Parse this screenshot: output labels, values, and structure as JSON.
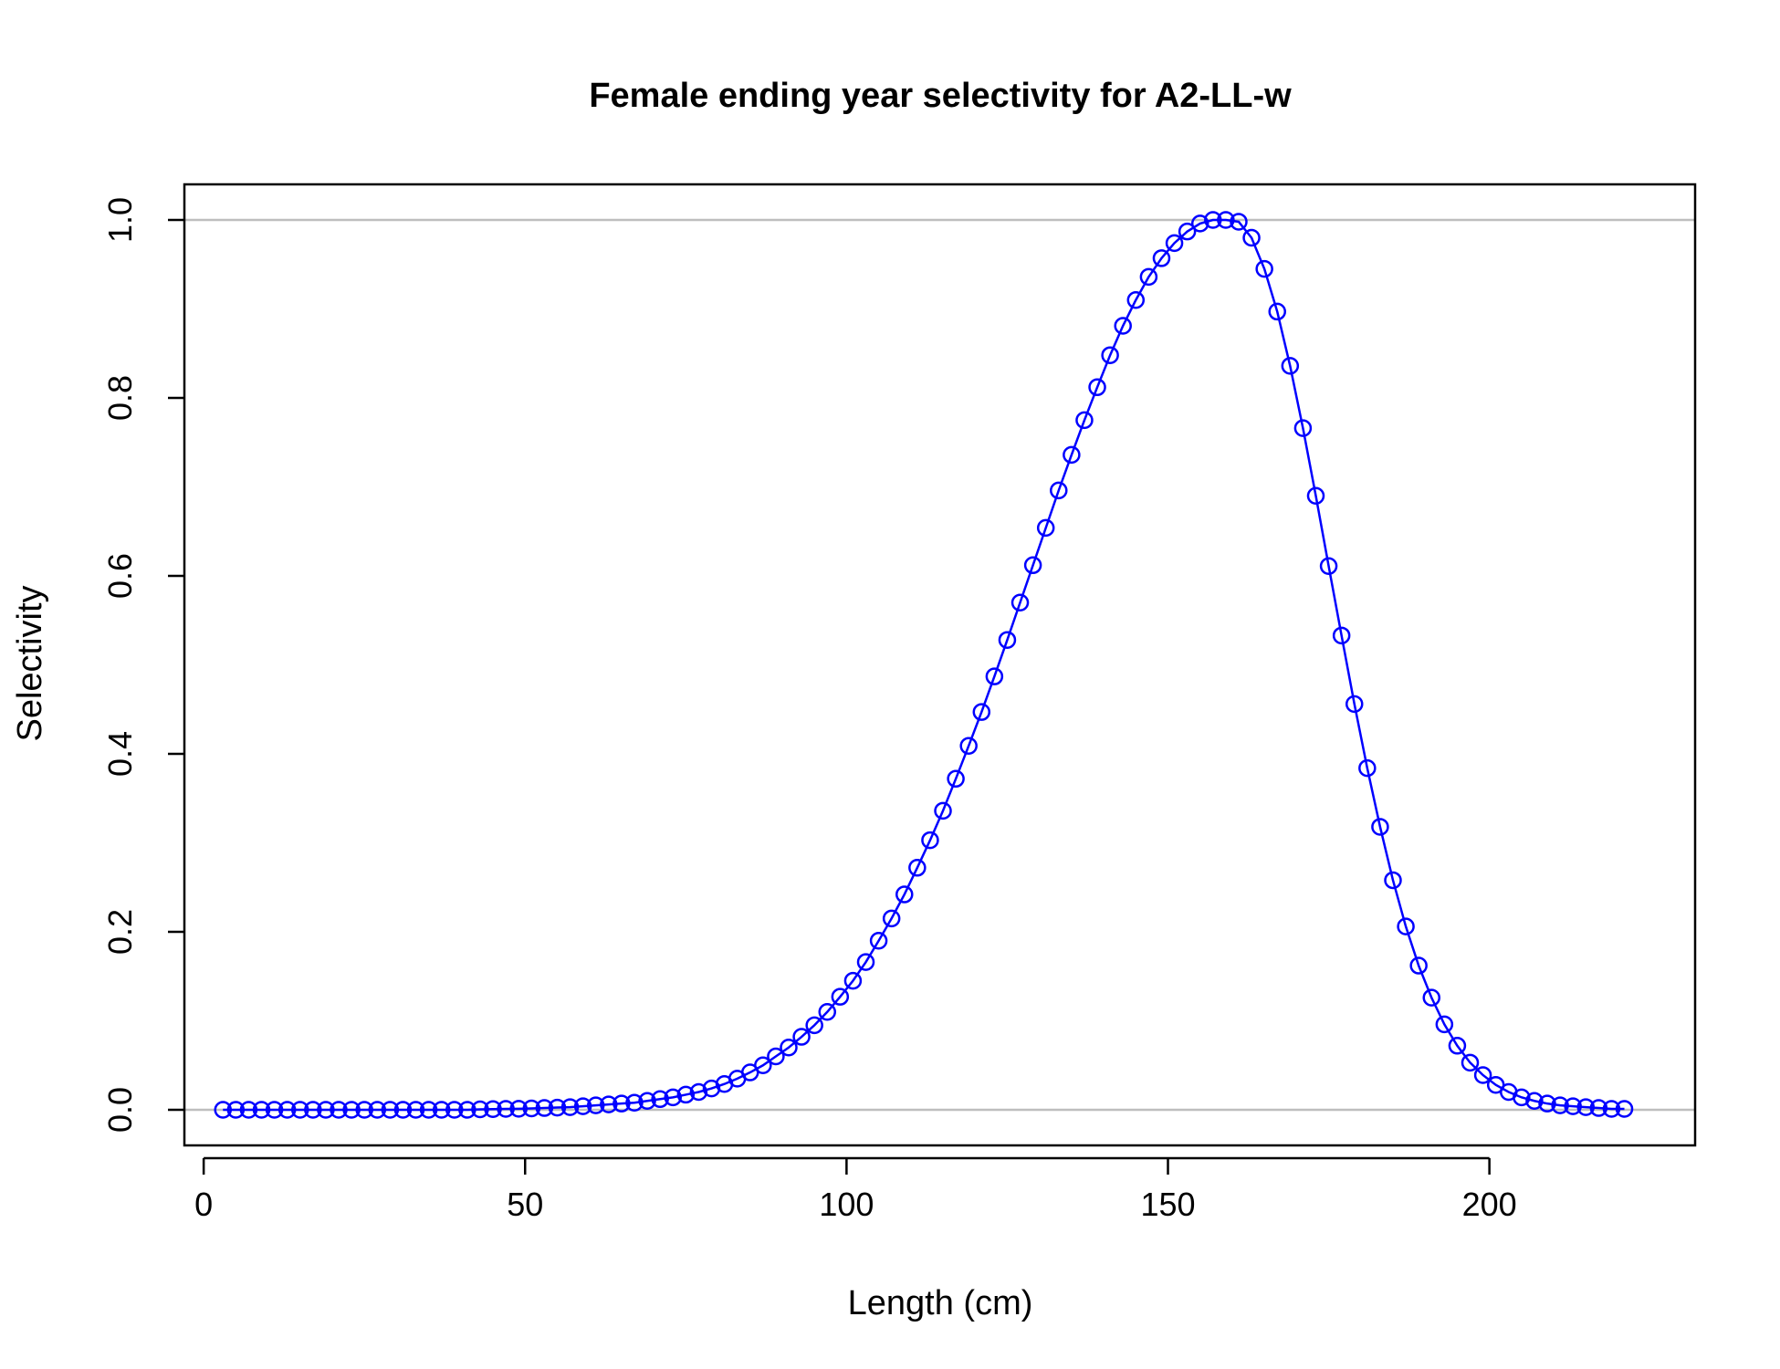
{
  "chart_data": {
    "type": "line",
    "title": "Female ending year selectivity for A2-LL-w",
    "xlabel": "Length (cm)",
    "ylabel": "Selectivity",
    "xlim": [
      -3,
      232
    ],
    "ylim": [
      -0.04,
      1.04
    ],
    "x_ticks": [
      0,
      50,
      100,
      150,
      200
    ],
    "y_ticks": [
      0.0,
      0.2,
      0.4,
      0.6,
      0.8,
      1.0
    ],
    "x_tick_labels": [
      "0",
      "50",
      "100",
      "150",
      "200"
    ],
    "y_tick_labels": [
      "0.0",
      "0.2",
      "0.4",
      "0.6",
      "0.8",
      "1.0"
    ],
    "reference_lines_y": [
      0,
      1
    ],
    "grid": false,
    "series": [
      {
        "marker": "open-circle",
        "line": true,
        "x": [
          3,
          5,
          7,
          9,
          11,
          13,
          15,
          17,
          19,
          21,
          23,
          25,
          27,
          29,
          31,
          33,
          35,
          37,
          39,
          41,
          43,
          45,
          47,
          49,
          51,
          53,
          55,
          57,
          59,
          61,
          63,
          65,
          67,
          69,
          71,
          73,
          75,
          77,
          79,
          81,
          83,
          85,
          87,
          89,
          91,
          93,
          95,
          97,
          99,
          101,
          103,
          105,
          107,
          109,
          111,
          113,
          115,
          117,
          119,
          121,
          123,
          125,
          127,
          129,
          131,
          133,
          135,
          137,
          139,
          141,
          143,
          145,
          147,
          149,
          151,
          153,
          155,
          157,
          159,
          161,
          163,
          165,
          167,
          169,
          171,
          173,
          175,
          177,
          179,
          181,
          183,
          185,
          187,
          189,
          191,
          193,
          195,
          197,
          199,
          201,
          203,
          205,
          207,
          209,
          211,
          213,
          215,
          217,
          219,
          221
        ],
        "y": [
          0,
          0,
          0,
          0,
          0,
          0,
          0,
          0,
          0,
          0,
          0,
          0,
          0,
          0,
          0,
          0,
          0,
          0,
          0,
          0,
          0.0005,
          0.0008,
          0.001,
          0.0012,
          0.0015,
          0.002,
          0.0025,
          0.003,
          0.004,
          0.005,
          0.006,
          0.007,
          0.008,
          0.01,
          0.012,
          0.014,
          0.017,
          0.02,
          0.024,
          0.029,
          0.035,
          0.042,
          0.05,
          0.06,
          0.07,
          0.082,
          0.095,
          0.11,
          0.127,
          0.145,
          0.166,
          0.19,
          0.215,
          0.242,
          0.272,
          0.303,
          0.336,
          0.372,
          0.409,
          0.447,
          0.487,
          0.528,
          0.57,
          0.612,
          0.654,
          0.696,
          0.736,
          0.775,
          0.812,
          0.848,
          0.881,
          0.91,
          0.936,
          0.957,
          0.974,
          0.987,
          0.996,
          1.0,
          1.0,
          0.998,
          0.98,
          0.945,
          0.897,
          0.836,
          0.766,
          0.69,
          0.611,
          0.533,
          0.456,
          0.384,
          0.318,
          0.258,
          0.206,
          0.162,
          0.126,
          0.096,
          0.072,
          0.053,
          0.039,
          0.028,
          0.02,
          0.014,
          0.01,
          0.007,
          0.005,
          0.004,
          0.003,
          0.002,
          0.001,
          0.001
        ],
        "color": "#0000ff"
      }
    ],
    "reference_line_color": "#bebebe"
  }
}
